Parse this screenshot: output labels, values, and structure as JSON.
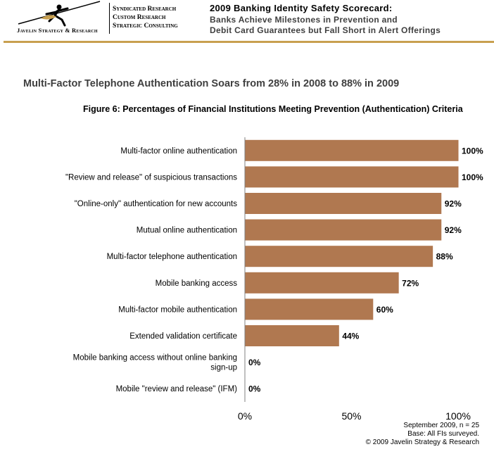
{
  "header": {
    "logo_text": "Javelin Strategy & Research",
    "tagline": [
      "Syndicated Research",
      "Custom Research",
      "Strategic Consulting"
    ],
    "report_title": "2009 Banking Identity Safety Scorecard:",
    "report_subtitle_lines": [
      "Banks Achieve Milestones in Prevention and",
      "Debit Card Guarantees but Fall Short in Alert Offerings"
    ],
    "accent_color": "#c8a050"
  },
  "headline": "Multi-Factor Telephone Authentication Soars from 28% in 2008 to 88% in 2009",
  "chart_data": {
    "type": "bar",
    "orientation": "horizontal",
    "title": "Figure 6: Percentages of Financial Institutions Meeting Prevention (Authentication) Criteria",
    "categories": [
      [
        "Multi-factor online authentication"
      ],
      [
        "\"Review and release\" of suspicious transactions"
      ],
      [
        "\"Online-only\" authentication for new accounts"
      ],
      [
        "Mutual online authentication"
      ],
      [
        "Multi-factor telephone authentication"
      ],
      [
        "Mobile banking access"
      ],
      [
        "Multi-factor mobile authentication"
      ],
      [
        "Extended validation certificate"
      ],
      [
        "Mobile banking access without online banking",
        "sign-up"
      ],
      [
        "Mobile \"review and release\" (IFM)"
      ]
    ],
    "values": [
      100,
      100,
      92,
      92,
      88,
      72,
      60,
      44,
      0,
      0
    ],
    "data_labels": [
      "100%",
      "100%",
      "92%",
      "92%",
      "88%",
      "72%",
      "60%",
      "44%",
      "0%",
      "0%"
    ],
    "x_ticks": [
      0,
      50,
      100
    ],
    "x_tick_labels": [
      "0%",
      "50%",
      "100%"
    ],
    "xlim": [
      0,
      100
    ],
    "bar_color": "#b07850",
    "grid": false,
    "legend": "none"
  },
  "footnote": {
    "lines": [
      "September 2009, n = 25",
      "Base: All FIs surveyed.",
      "© 2009 Javelin Strategy & Research"
    ]
  }
}
